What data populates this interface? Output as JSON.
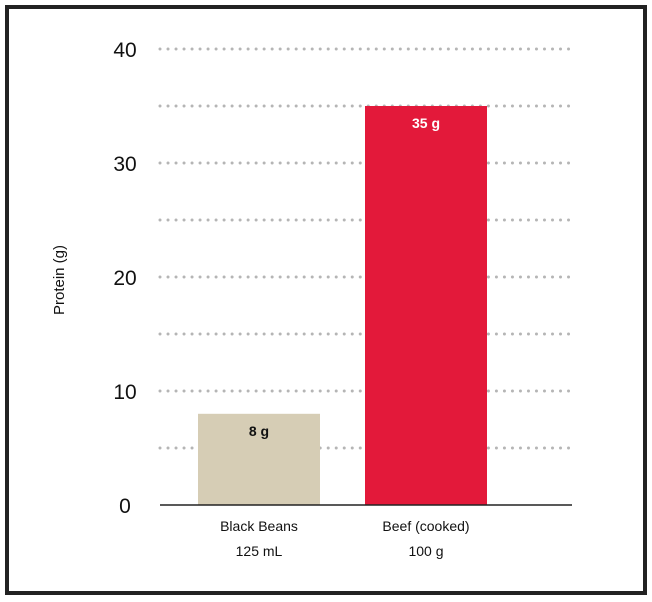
{
  "chart_data": {
    "type": "bar",
    "title": "",
    "xlabel": "",
    "ylabel": "Protein (g)",
    "ylim": [
      0,
      40
    ],
    "yticks": [
      0,
      10,
      20,
      30,
      40
    ],
    "grid": "dotted horizontal, every 5 units",
    "categories": [
      {
        "line1": "Black Beans",
        "line2": "125 mL"
      },
      {
        "line1": "Beef (cooked)",
        "line2": "100 g"
      }
    ],
    "values": [
      8,
      35
    ],
    "data_labels": [
      "8 g",
      "35 g"
    ],
    "colors": [
      "#d6cdb5",
      "#e3193a"
    ],
    "label_colors": [
      "#111111",
      "#ffffff"
    ]
  }
}
